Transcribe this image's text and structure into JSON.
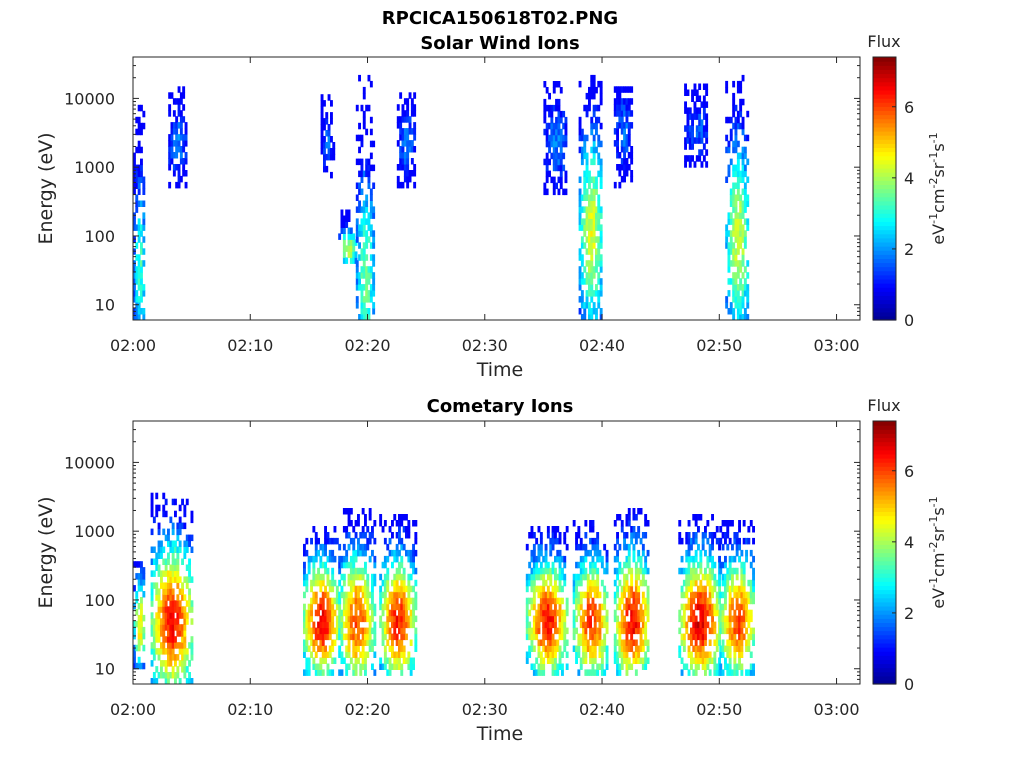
{
  "chart_data": [
    {
      "type": "heatmap",
      "figure_title": "RPCICA150618T02.PNG",
      "title": "Solar Wind Ions",
      "xlabel": "Time",
      "ylabel": "Energy (eV)",
      "x_ticks": [
        "02:00",
        "02:10",
        "02:20",
        "02:30",
        "02:40",
        "02:50",
        "03:00"
      ],
      "xlim": [
        "02:00",
        "03:02"
      ],
      "y_scale": "log",
      "y_ticks": [
        10,
        100,
        1000,
        10000
      ],
      "ylim": [
        6,
        40000
      ],
      "colorbar": {
        "label": "Flux",
        "unit": "eV-1cm-2sr-1s-1",
        "colormap": "jet",
        "range": [
          0,
          7.4
        ],
        "ticks": [
          0,
          2,
          4,
          6
        ]
      },
      "colormap_colors": [
        "#00008f",
        "#0000ff",
        "#0080ff",
        "#00ffff",
        "#80ff80",
        "#ffff00",
        "#ff8000",
        "#ff0000",
        "#800000"
      ],
      "bursts": [
        {
          "t0": "02:00",
          "t1": "02:01",
          "e_lo": 6,
          "e_hi": 7000,
          "peak_flux": 3.2,
          "peak_energy": 30
        },
        {
          "t0": "02:03",
          "t1": "02:04.5",
          "e_lo": 500,
          "e_hi": 15000,
          "peak_flux": 1.8,
          "peak_energy": 2000
        },
        {
          "t0": "02:16",
          "t1": "02:17",
          "e_lo": 700,
          "e_hi": 10000,
          "peak_flux": 1.6,
          "peak_energy": 2000
        },
        {
          "t0": "02:17.5",
          "t1": "02:19",
          "e_lo": 40,
          "e_hi": 200,
          "peak_flux": 4.2,
          "peak_energy": 60
        },
        {
          "t0": "02:19",
          "t1": "02:20.5",
          "e_lo": 6,
          "e_hi": 20000,
          "peak_flux": 3.6,
          "peak_energy": 25
        },
        {
          "t0": "02:22.5",
          "t1": "02:24",
          "e_lo": 500,
          "e_hi": 12000,
          "peak_flux": 1.7,
          "peak_energy": 2000
        },
        {
          "t0": "02:35",
          "t1": "02:37",
          "e_lo": 400,
          "e_hi": 15000,
          "peak_flux": 1.8,
          "peak_energy": 2000
        },
        {
          "t0": "02:38",
          "t1": "02:40",
          "e_lo": 6,
          "e_hi": 20000,
          "peak_flux": 4.4,
          "peak_energy": 100
        },
        {
          "t0": "02:41",
          "t1": "02:42.5",
          "e_lo": 500,
          "e_hi": 15000,
          "peak_flux": 1.7,
          "peak_energy": 3000
        },
        {
          "t0": "02:47",
          "t1": "02:49",
          "e_lo": 1000,
          "e_hi": 15000,
          "peak_flux": 1.6,
          "peak_energy": 3000
        },
        {
          "t0": "02:50.5",
          "t1": "02:52.5",
          "e_lo": 6,
          "e_hi": 20000,
          "peak_flux": 4.3,
          "peak_energy": 80
        }
      ]
    },
    {
      "type": "heatmap",
      "title": "Cometary Ions",
      "xlabel": "Time",
      "ylabel": "Energy (eV)",
      "x_ticks": [
        "02:00",
        "02:10",
        "02:20",
        "02:30",
        "02:40",
        "02:50",
        "03:00"
      ],
      "xlim": [
        "02:00",
        "03:02"
      ],
      "y_scale": "log",
      "y_ticks": [
        10,
        100,
        1000,
        10000
      ],
      "ylim": [
        6,
        40000
      ],
      "colorbar": {
        "label": "Flux",
        "unit": "eV-1cm-2sr-1s-1",
        "colormap": "jet",
        "range": [
          0,
          7.4
        ],
        "ticks": [
          0,
          2,
          4,
          6
        ]
      },
      "colormap_colors": [
        "#00008f",
        "#0000ff",
        "#0080ff",
        "#00ffff",
        "#80ff80",
        "#ffff00",
        "#ff8000",
        "#ff0000",
        "#800000"
      ],
      "bursts": [
        {
          "t0": "02:00",
          "t1": "02:01",
          "e_lo": 10,
          "e_hi": 400,
          "peak_flux": 4.8,
          "peak_energy": 40
        },
        {
          "t0": "02:01.5",
          "t1": "02:05",
          "e_lo": 6,
          "e_hi": 3000,
          "peak_flux": 6.4,
          "peak_energy": 45
        },
        {
          "t0": "02:14.5",
          "t1": "02:17.5",
          "e_lo": 8,
          "e_hi": 1000,
          "peak_flux": 6.6,
          "peak_energy": 45
        },
        {
          "t0": "02:17.5",
          "t1": "02:20.5",
          "e_lo": 8,
          "e_hi": 2000,
          "peak_flux": 6.0,
          "peak_energy": 45
        },
        {
          "t0": "02:21",
          "t1": "02:24",
          "e_lo": 8,
          "e_hi": 1500,
          "peak_flux": 6.3,
          "peak_energy": 45
        },
        {
          "t0": "02:33.5",
          "t1": "02:37",
          "e_lo": 8,
          "e_hi": 1000,
          "peak_flux": 6.4,
          "peak_energy": 45
        },
        {
          "t0": "02:37.5",
          "t1": "02:40.5",
          "e_lo": 8,
          "e_hi": 1200,
          "peak_flux": 6.2,
          "peak_energy": 45
        },
        {
          "t0": "02:41",
          "t1": "02:44",
          "e_lo": 8,
          "e_hi": 2000,
          "peak_flux": 6.5,
          "peak_energy": 45
        },
        {
          "t0": "02:46.5",
          "t1": "02:50",
          "e_lo": 8,
          "e_hi": 1500,
          "peak_flux": 6.7,
          "peak_energy": 45
        },
        {
          "t0": "02:50",
          "t1": "02:53",
          "e_lo": 8,
          "e_hi": 1200,
          "peak_flux": 6.1,
          "peak_energy": 45
        }
      ]
    }
  ]
}
